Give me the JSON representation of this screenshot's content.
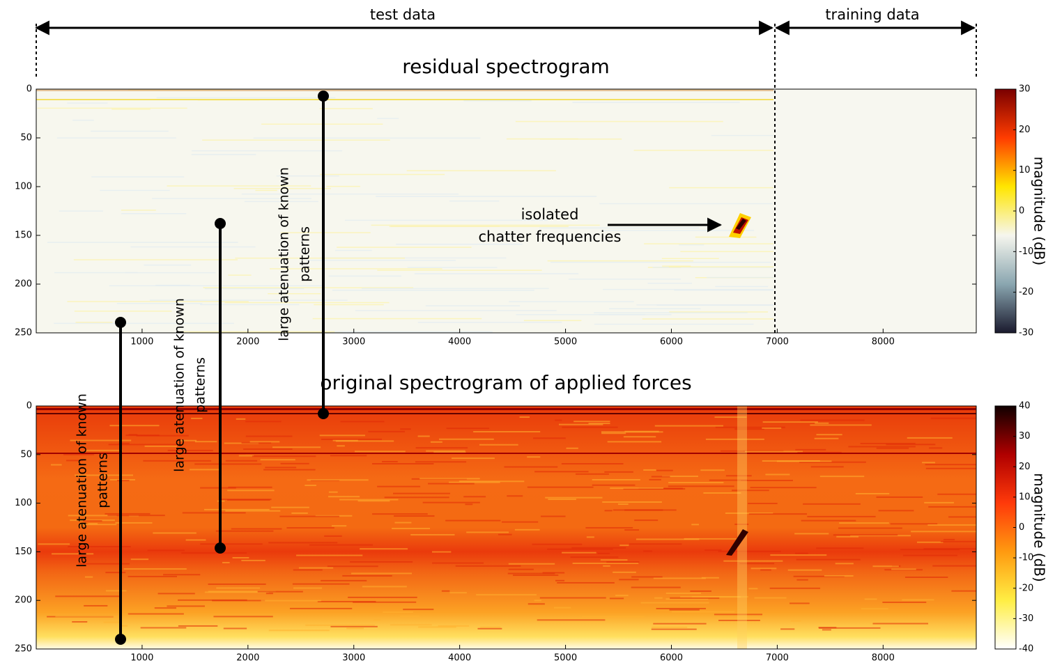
{
  "header": {
    "left_label": "test data",
    "right_label": "training data"
  },
  "chart_data": [
    {
      "type": "heatmap",
      "title": "residual spectrogram",
      "xlim": [
        0,
        8880
      ],
      "xticks": [
        1000,
        2000,
        3000,
        4000,
        5000,
        6000,
        7000,
        8000
      ],
      "ylim": [
        0,
        250
      ],
      "yticks": [
        0,
        50,
        100,
        150,
        200,
        250
      ],
      "y_inverted": true,
      "colorbar": {
        "label": "magnitude (dB)",
        "lim": [
          -30,
          30
        ],
        "ticks": [
          -30,
          -20,
          -10,
          0,
          10,
          20,
          30
        ],
        "colors": [
          "#1a1a2e",
          "#8aa6b0",
          "#f6f6ee",
          "#ffe600",
          "#ff3c00",
          "#7a0000"
        ]
      }
    },
    {
      "type": "heatmap",
      "title": "original spectrogram of applied forces",
      "xlim": [
        0,
        8880
      ],
      "xticks": [
        1000,
        2000,
        3000,
        4000,
        5000,
        6000,
        7000,
        8000
      ],
      "ylim": [
        0,
        250
      ],
      "yticks": [
        0,
        50,
        100,
        150,
        200,
        250
      ],
      "y_inverted": true,
      "colorbar": {
        "label": "magnitude (dB)",
        "lim": [
          -40,
          40
        ],
        "ticks": [
          -40,
          -30,
          -20,
          -10,
          0,
          10,
          20,
          30,
          40
        ],
        "colors": [
          "#ffffff",
          "#ffee44",
          "#ff9a10",
          "#ff3a0a",
          "#b00000",
          "#100000"
        ]
      }
    }
  ],
  "annotations": [
    {
      "lines": [
        "isolated",
        "chatter frequencies"
      ]
    },
    {
      "lines": [
        "large atenuation of known",
        "patterns"
      ]
    },
    {
      "lines": [
        "large atenuation of known",
        "patterns"
      ]
    },
    {
      "lines": [
        "large atenuation of known",
        "patterns"
      ]
    }
  ]
}
